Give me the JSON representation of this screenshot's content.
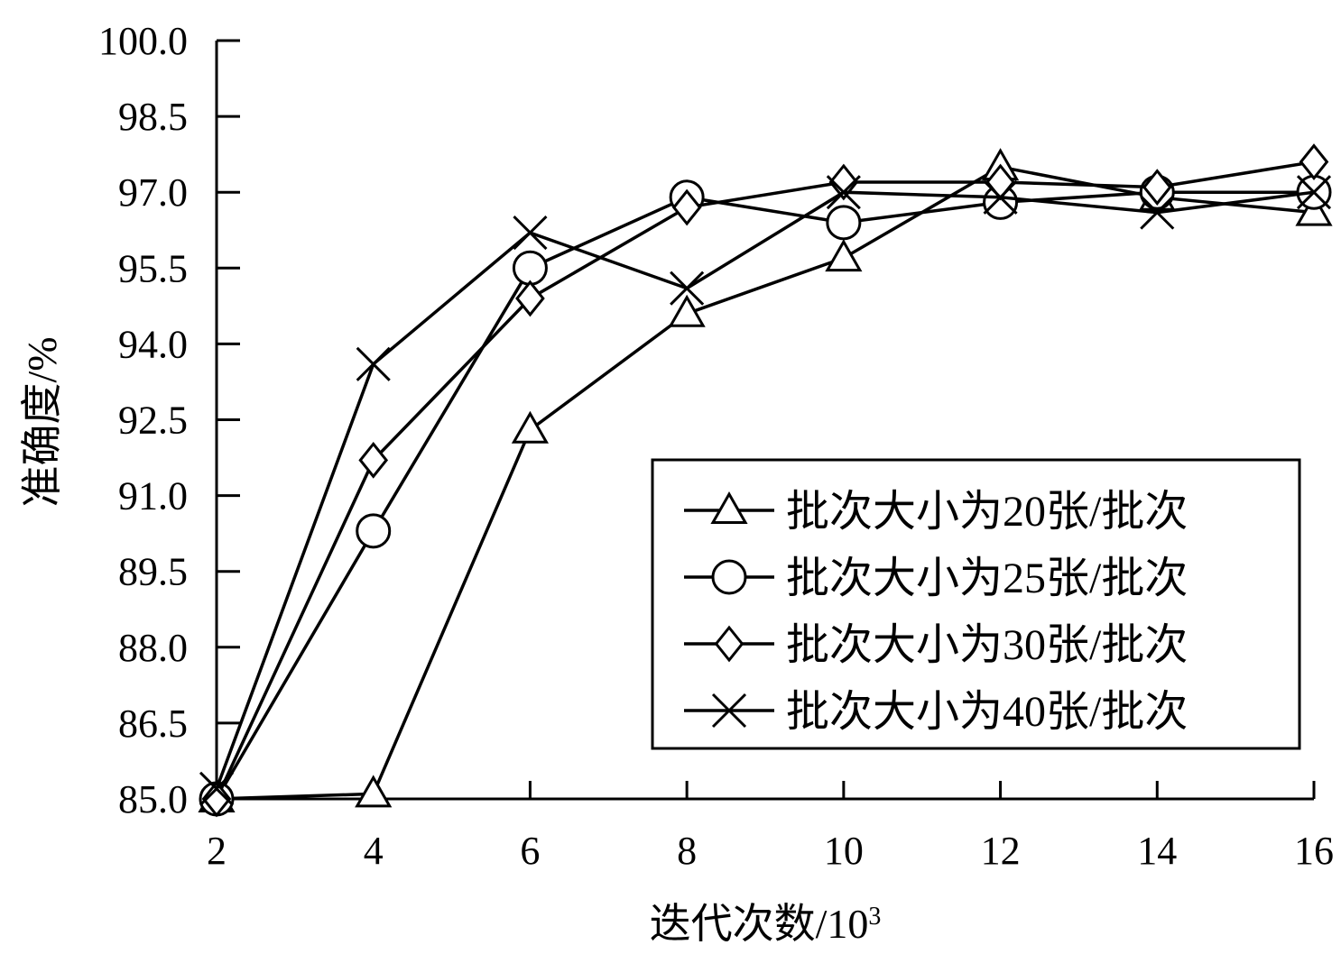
{
  "chart_data": {
    "type": "line",
    "title": "",
    "xlabel": "迭代次数/10",
    "xlabel_sup": "3",
    "ylabel": "准确度/%",
    "x": [
      2,
      4,
      6,
      8,
      10,
      12,
      14,
      16
    ],
    "x_ticks": [
      "2",
      "4",
      "6",
      "8",
      "10",
      "12",
      "14",
      "16"
    ],
    "y_ticks": [
      "85.0",
      "86.5",
      "88.0",
      "89.5",
      "91.0",
      "92.5",
      "94.0",
      "95.5",
      "97.0",
      "98.5",
      "100.0"
    ],
    "xlim": [
      2,
      16
    ],
    "ylim": [
      85.0,
      100.0
    ],
    "grid": false,
    "legend_position": "bottom-right",
    "series": [
      {
        "name": "批次大小为20张/批次",
        "marker": "triangle",
        "values": [
          85.0,
          85.1,
          92.3,
          94.6,
          95.7,
          97.5,
          96.9,
          96.6
        ]
      },
      {
        "name": "批次大小为25张/批次",
        "marker": "circle",
        "values": [
          85.0,
          90.3,
          95.5,
          96.9,
          96.4,
          96.8,
          97.0,
          97.0
        ]
      },
      {
        "name": "批次大小为30张/批次",
        "marker": "diamond",
        "values": [
          85.0,
          91.7,
          94.9,
          96.7,
          97.2,
          97.2,
          97.1,
          97.6
        ]
      },
      {
        "name": "批次大小为40张/批次",
        "marker": "x",
        "values": [
          85.2,
          93.6,
          96.2,
          95.1,
          97.0,
          96.9,
          96.6,
          97.0
        ]
      }
    ]
  }
}
